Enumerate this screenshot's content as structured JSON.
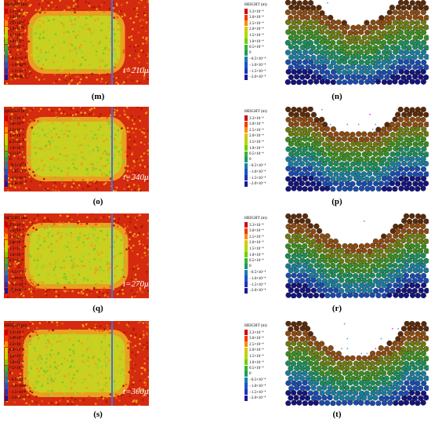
{
  "legend": {
    "title": "HEIGHT (m)",
    "ticks": [
      "3.3×10⁻⁴",
      "3.0×10⁻⁴",
      "2.5×10⁻⁴",
      "2.0×10⁻⁴",
      "1.5×10⁻⁴",
      "1.0×10⁻⁴",
      "0.5×10⁻⁴",
      "0",
      "−0.5×10⁻⁴",
      "−1.0×10⁻⁴",
      "−1.5×10⁻⁴",
      "−2.0×10⁻⁴"
    ],
    "colors": [
      "#d40000",
      "#f03c00",
      "#ff8c00",
      "#d8c800",
      "#b4d800",
      "#70d000",
      "#30b830",
      "#1e9a6a",
      "#1a7fa8",
      "#1d55cc",
      "#2233bb",
      "#1a1a9a"
    ]
  },
  "panels": [
    {
      "top_caption": "(m)",
      "view_caption": "(n)",
      "time_label": "t=210μs"
    },
    {
      "top_caption": "(o)",
      "view_caption": "(p)",
      "time_label": "t=240μs"
    },
    {
      "top_caption": "(q)",
      "view_caption": "(r)",
      "time_label": "t=270μs"
    },
    {
      "top_caption": "(s)",
      "view_caption": "(t)",
      "time_label": "t=300μs"
    }
  ]
}
